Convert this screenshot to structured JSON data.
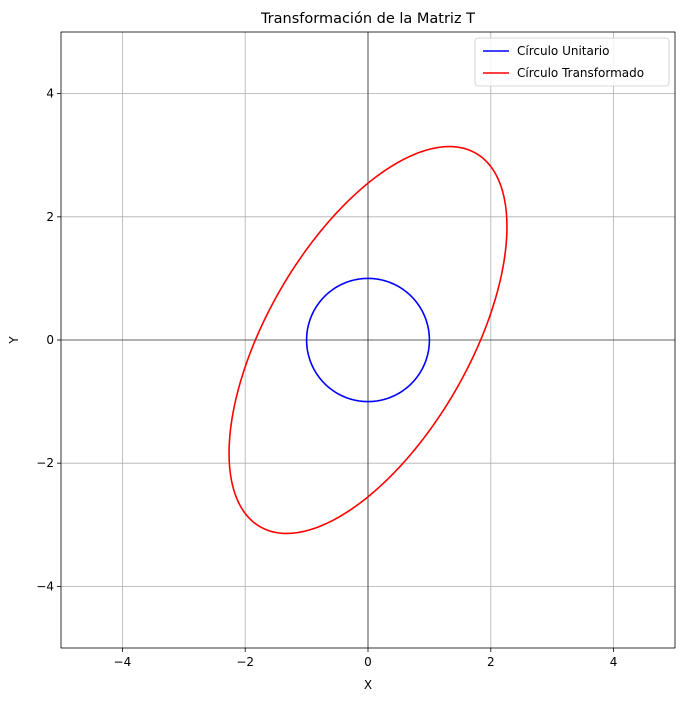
{
  "chart_data": {
    "type": "line",
    "title": "Transformación de la Matriz T",
    "xlabel": "X",
    "ylabel": "Y",
    "xlim": [
      -5,
      5
    ],
    "ylim": [
      -5,
      5
    ],
    "xticks": [
      -4,
      -2,
      0,
      2,
      4
    ],
    "yticks": [
      -4,
      -2,
      0,
      2,
      4
    ],
    "tick_labels_x": [
      "−4",
      "−2",
      "0",
      "2",
      "4"
    ],
    "tick_labels_y": [
      "−4",
      "−2",
      "0",
      "2",
      "4"
    ],
    "grid": true,
    "legend_position": "top-right",
    "series": [
      {
        "name": "Círculo Unitario",
        "color": "#0000ff",
        "kind": "parametric-ellipse",
        "matrix": [
          [
            1,
            0
          ],
          [
            0,
            1
          ]
        ]
      },
      {
        "name": "Círculo Transformado",
        "color": "#ff0000",
        "kind": "parametric-ellipse",
        "matrix": [
          [
            1.6,
            1.6
          ],
          [
            -0.5,
            3.1
          ]
        ]
      }
    ]
  }
}
